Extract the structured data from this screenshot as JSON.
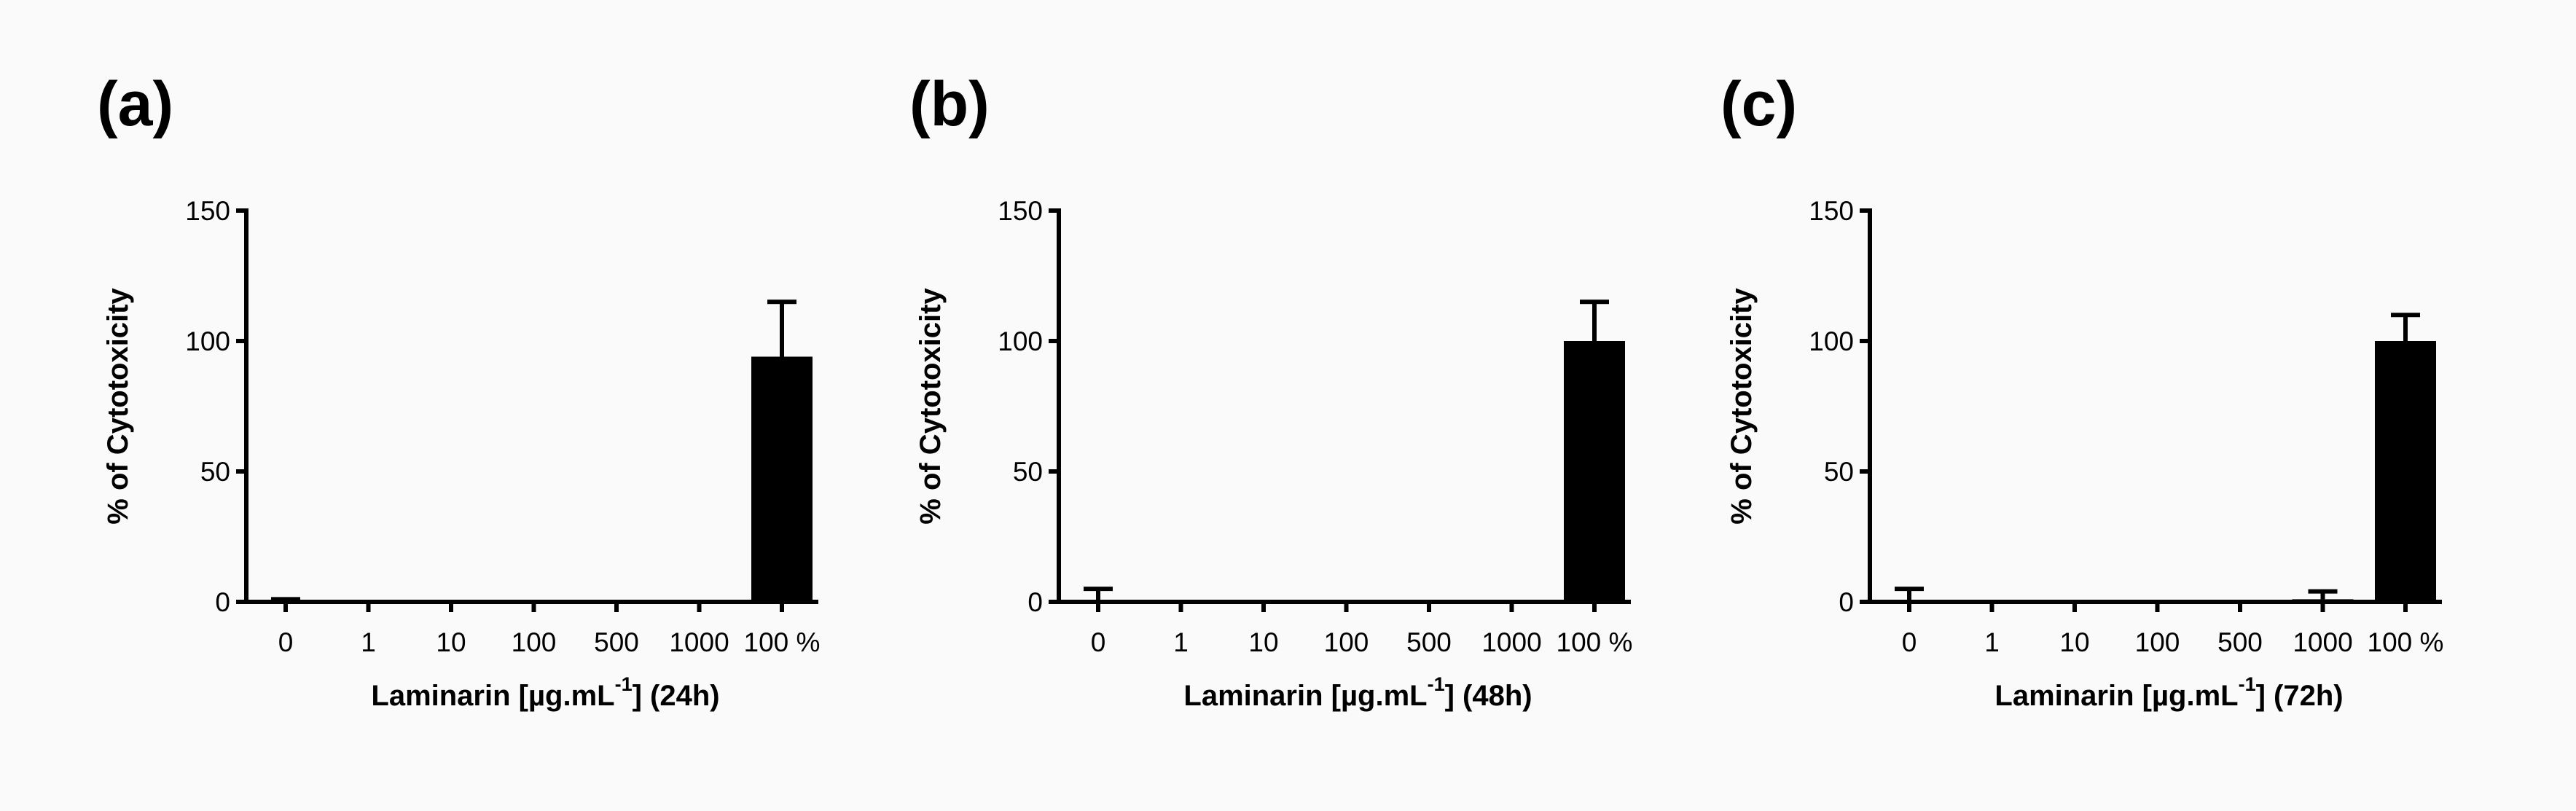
{
  "figure": {
    "background": "#fafafa",
    "bar_color": "#000000"
  },
  "chart_data": [
    {
      "type": "bar",
      "panel_label": "(a)",
      "title": "",
      "categories": [
        "0",
        "1",
        "10",
        "100",
        "500",
        "1000",
        "100 %"
      ],
      "values": [
        0,
        0,
        0,
        0,
        0,
        0,
        94
      ],
      "error_up": [
        1,
        0,
        0,
        0,
        0,
        0,
        21
      ],
      "ylim": [
        0,
        150
      ],
      "yticks": [
        "0",
        "50",
        "100",
        "150"
      ],
      "ylabel": "% of Cytotoxicity",
      "xlabel": {
        "main": "Laminarin [µg.mL",
        "sup": "-1",
        "tail": "]  (24h)"
      },
      "grid": false,
      "legend": "none"
    },
    {
      "type": "bar",
      "panel_label": "(b)",
      "title": "",
      "categories": [
        "0",
        "1",
        "10",
        "100",
        "500",
        "1000",
        "100 %"
      ],
      "values": [
        0,
        0,
        0,
        0,
        0,
        0,
        100
      ],
      "error_up": [
        5,
        0,
        0,
        0,
        0,
        0,
        15
      ],
      "ylim": [
        0,
        150
      ],
      "yticks": [
        "0",
        "50",
        "100",
        "150"
      ],
      "ylabel": "% of Cytotoxicity",
      "xlabel": {
        "main": "Laminarin [µg.mL",
        "sup": "-1",
        "tail": "]  (48h)"
      },
      "grid": false,
      "legend": "none"
    },
    {
      "type": "bar",
      "panel_label": "(c)",
      "title": "",
      "categories": [
        "0",
        "1",
        "10",
        "100",
        "500",
        "1000",
        "100 %"
      ],
      "values": [
        0,
        0,
        0,
        0,
        0,
        1,
        100
      ],
      "error_up": [
        5,
        0,
        0,
        0,
        0,
        3,
        10
      ],
      "ylim": [
        0,
        150
      ],
      "yticks": [
        "0",
        "50",
        "100",
        "150"
      ],
      "ylabel": "% of Cytotoxicity",
      "xlabel": {
        "main": "Laminarin [µg.mL",
        "sup": "-1",
        "tail": "]  (72h)"
      },
      "grid": false,
      "legend": "none"
    }
  ]
}
